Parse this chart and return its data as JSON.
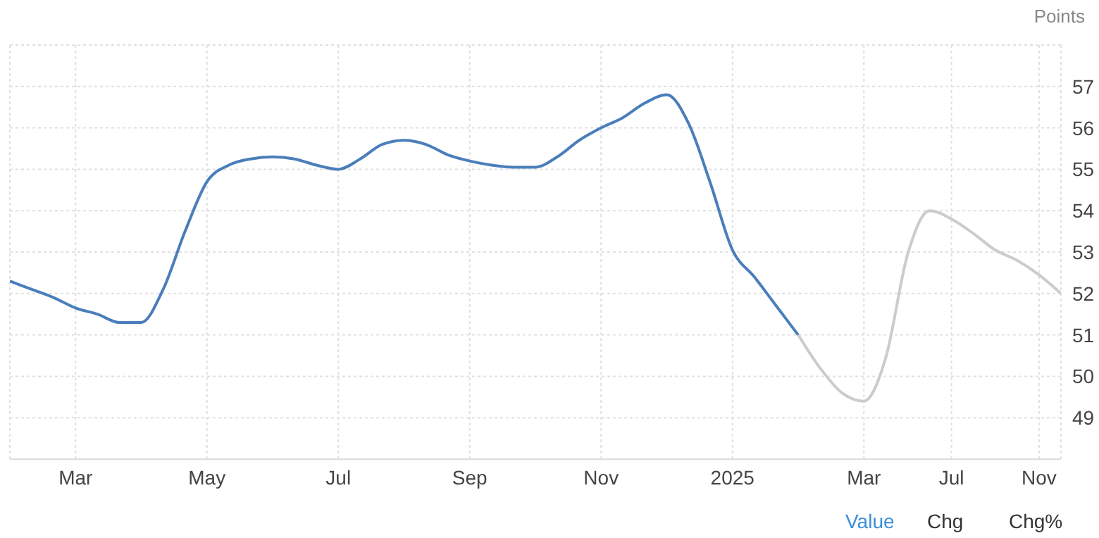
{
  "chart_data": {
    "type": "line",
    "ylabel": "Points",
    "categories": [
      null,
      null,
      null,
      "Mar",
      null,
      null,
      null,
      null,
      null,
      "May",
      null,
      null,
      null,
      null,
      null,
      "Jul",
      null,
      null,
      null,
      null,
      null,
      "Sep",
      null,
      null,
      null,
      null,
      null,
      "Nov",
      null,
      null,
      null,
      null,
      null,
      "2025",
      null,
      null,
      null,
      null,
      null,
      "Mar",
      null,
      null,
      null,
      "Jul",
      null,
      null,
      null,
      "Nov",
      null
    ],
    "series": [
      {
        "color": "#4a7ebb",
        "values": [
          52.3,
          52.1,
          51.9,
          51.65,
          51.5,
          51.3,
          51.3,
          52.1,
          53.5,
          54.7,
          55.1,
          55.25,
          55.3,
          55.25,
          55.1,
          55.0,
          55.25,
          55.6,
          55.7,
          55.6,
          55.35,
          55.2,
          55.1,
          55.05,
          55.05,
          55.3,
          55.7,
          56.0,
          56.25,
          56.6,
          56.8,
          56.1,
          54.65,
          53.05,
          52.4,
          51.7,
          51.0,
          null,
          null,
          null,
          null,
          null,
          null,
          null,
          null,
          null,
          null,
          null,
          null
        ]
      },
      {
        "color": "#cccccc",
        "values": [
          null,
          null,
          null,
          null,
          null,
          null,
          null,
          null,
          null,
          null,
          null,
          null,
          null,
          null,
          null,
          null,
          null,
          null,
          null,
          null,
          null,
          null,
          null,
          null,
          null,
          null,
          null,
          null,
          null,
          null,
          null,
          null,
          null,
          null,
          null,
          null,
          51.0,
          50.2,
          49.6,
          49.4,
          50.45,
          52.95,
          54.0,
          53.8,
          53.45,
          53.05,
          52.8,
          52.45,
          52.0
        ]
      }
    ],
    "ylim": [
      48,
      58
    ],
    "yticks": [
      49,
      50,
      51,
      52,
      53,
      54,
      55,
      56,
      57,
      {
        "value": 58,
        "label": null
      }
    ],
    "grid": true,
    "legend": false,
    "marker": "none",
    "line_style": "solid",
    "annotations": [
      "Value",
      "Chg",
      "Chg%"
    ]
  }
}
